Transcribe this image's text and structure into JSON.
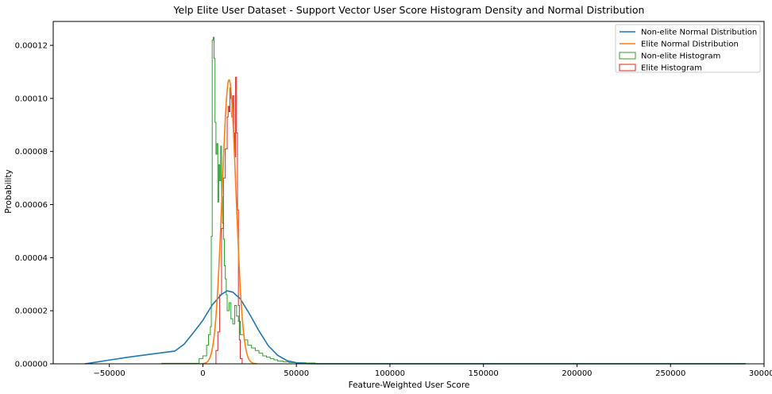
{
  "chart_data": {
    "type": "histogram",
    "title": "Yelp Elite User Dataset - Support Vector User Score Histogram Density and Normal Distribution",
    "xlabel": "Feature-Weighted User Score",
    "ylabel": "Probability",
    "xlim": [
      -80000,
      300000
    ],
    "ylim": [
      0,
      0.000129
    ],
    "xticks": [
      -50000,
      0,
      50000,
      100000,
      150000,
      200000,
      250000,
      300000
    ],
    "xtick_labels": [
      "−50000",
      "0",
      "50000",
      "100000",
      "150000",
      "200000",
      "250000",
      "300000"
    ],
    "yticks": [
      0,
      2e-05,
      4e-05,
      6e-05,
      8e-05,
      0.0001,
      0.00012
    ],
    "ytick_labels": [
      "0.00000",
      "0.00002",
      "0.00004",
      "0.00006",
      "0.00008",
      "0.00010",
      "0.00012"
    ],
    "legend_position": "top-right",
    "grid": false,
    "series": [
      {
        "name": "Non-elite Normal Distribution",
        "kind": "line",
        "color": "#1f77b4",
        "mean": 13000,
        "std": 14500,
        "x": [
          -63000,
          -52000,
          -40000,
          -28000,
          -15000,
          -10000,
          -5000,
          0,
          5000,
          10000,
          13000,
          16000,
          20000,
          25000,
          30000,
          35000,
          40000,
          45000,
          50000,
          55000,
          60000,
          70000,
          290000
        ],
        "y": [
          0,
          1.2e-06,
          2.5e-06,
          3.6e-06,
          4.8e-06,
          7.4e-06,
          1.18e-05,
          1.64e-05,
          2.22e-05,
          2.62e-05,
          2.75e-05,
          2.7e-05,
          2.45e-05,
          1.87e-05,
          1.24e-05,
          6.8e-06,
          3.2e-06,
          1.2e-06,
          4e-07,
          1e-07,
          0,
          0,
          0
        ]
      },
      {
        "name": "Elite Normal Distribution",
        "kind": "line",
        "color": "#ff7f0e",
        "mean": 14000,
        "std": 3700,
        "peak": 0.000107
      },
      {
        "name": "Non-elite Histogram",
        "kind": "step-histogram",
        "color": "#2ca02c",
        "bin_edges": [
          -22000,
          -2000,
          0,
          2000,
          3000,
          4000,
          4500,
          5000,
          5500,
          6000,
          6500,
          7000,
          7500,
          8000,
          8500,
          9000,
          9500,
          10000,
          10500,
          11000,
          11500,
          12000,
          12500,
          13000,
          14000,
          15000,
          16000,
          17000,
          18000,
          19000,
          20000,
          22000,
          24000,
          26000,
          28000,
          30000,
          32000,
          34000,
          36000,
          38000,
          40000,
          43000,
          46000,
          50000,
          55000,
          60000,
          290000
        ],
        "values": [
          2e-07,
          2e-06,
          3e-06,
          7e-06,
          1.1e-05,
          1.4e-05,
          4.8e-05,
          0.000122,
          0.000123,
          0.000115,
          9.1e-05,
          7.9e-05,
          8.3e-05,
          6.1e-05,
          7.5e-05,
          6.9e-05,
          8.2e-05,
          6.3e-05,
          5.3e-05,
          4.7e-05,
          3.7e-05,
          3.2e-05,
          2.6e-05,
          2e-05,
          2.3e-05,
          1.7e-05,
          1.5e-05,
          2.2e-05,
          1.8e-05,
          1.6e-05,
          1.1e-05,
          9e-06,
          7e-06,
          6e-06,
          5e-06,
          4e-06,
          3e-06,
          2.5e-06,
          2e-06,
          1.5e-06,
          1e-06,
          8e-07,
          5e-07,
          4e-07,
          3e-07,
          1e-07
        ]
      },
      {
        "name": "Elite Histogram",
        "kind": "step-histogram",
        "color": "#d62728",
        "bin_edges": [
          7000,
          8000,
          9000,
          10000,
          11000,
          12000,
          13000,
          13500,
          14000,
          14500,
          15000,
          15500,
          16000,
          16500,
          17000,
          17500,
          18000,
          18500,
          19000,
          19500,
          20000,
          21000
        ],
        "values": [
          5e-06,
          1.2e-05,
          2.6e-05,
          5.1e-05,
          7e-05,
          8.1e-05,
          9.3e-05,
          9.7e-05,
          9.5e-05,
          0.000104,
          0.0001,
          9.3e-05,
          0.000101,
          8.7e-05,
          7.8e-05,
          0.000108,
          8.7e-05,
          5.8e-05,
          2.2e-05,
          9e-06,
          2e-06
        ]
      }
    ]
  }
}
